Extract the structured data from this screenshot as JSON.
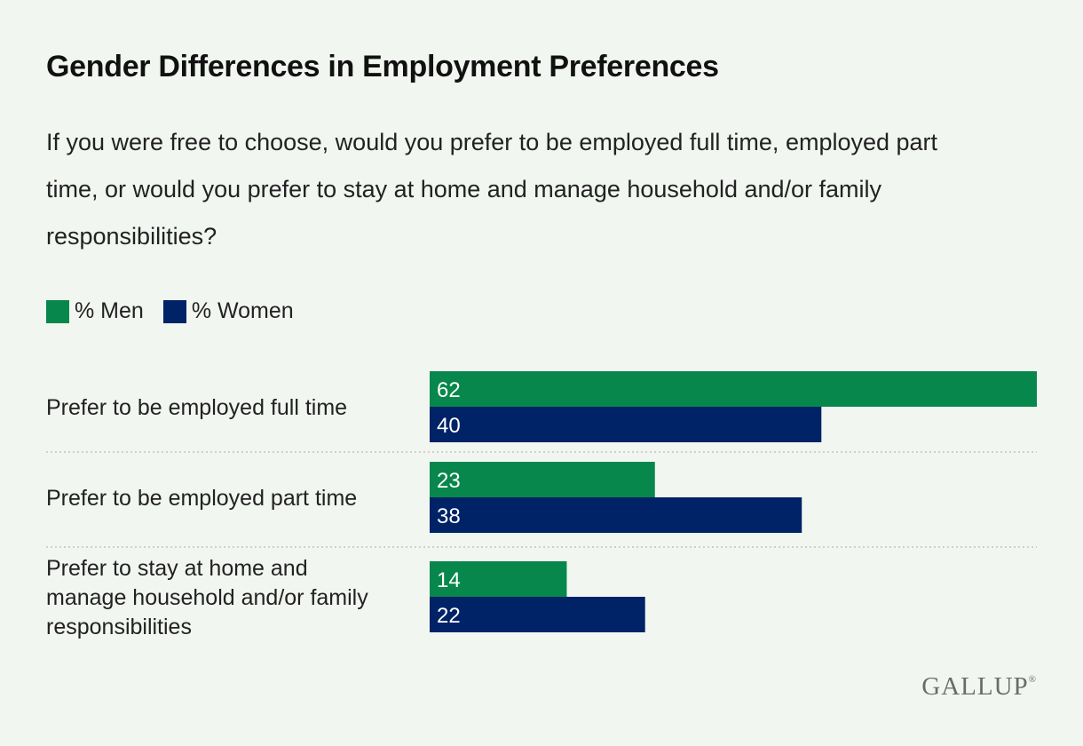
{
  "header": {
    "title": "Gender Differences in Employment Preferences",
    "subtitle": "If you were free to choose, would you prefer to be employed full time, employed part time, or would you prefer to stay at home and manage household and/or family responsibilities?"
  },
  "colors": {
    "men": "#07874b",
    "women": "#002266",
    "background": "#f2f6f1",
    "separator": "#c4c4c4"
  },
  "chart_data": {
    "type": "bar",
    "orientation": "horizontal",
    "categories": [
      [
        "Prefer to be employed full time"
      ],
      [
        "Prefer to be employed part time"
      ],
      [
        "Prefer to stay at home and",
        "manage household and/or family",
        "responsibilities"
      ]
    ],
    "series": [
      {
        "name": "% Men",
        "values": [
          62,
          23,
          14
        ]
      },
      {
        "name": "% Women",
        "values": [
          40,
          38,
          22
        ]
      }
    ],
    "xlim": [
      0,
      62
    ],
    "grid": false,
    "legend": "top-left",
    "data_labels": "inside-left"
  },
  "brand": {
    "name": "GALLUP",
    "mark": "®"
  }
}
